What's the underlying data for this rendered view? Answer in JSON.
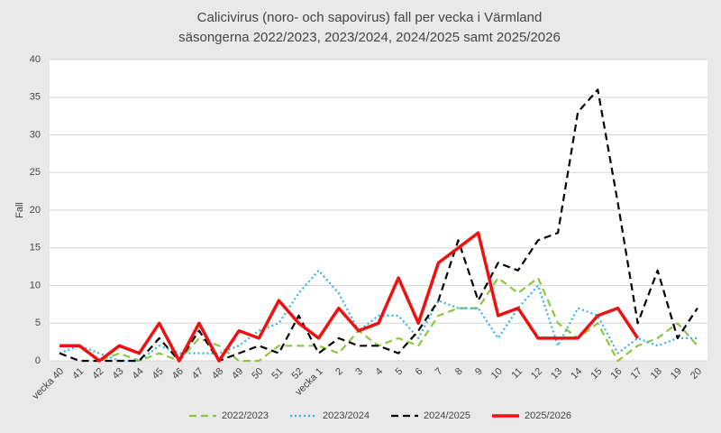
{
  "chart_data": {
    "type": "line",
    "title": "Calicivirus (noro- och sapovirus) fall per vecka i Värmland",
    "subtitle": "säsongerna 2022/2023, 2023/2024, 2024/2025 samt 2025/2026",
    "y_label": "Fall",
    "categories": [
      "vecka 40",
      "41",
      "42",
      "43",
      "44",
      "45",
      "46",
      "47",
      "48",
      "49",
      "50",
      "51",
      "52",
      "vecka 1",
      "2",
      "3",
      "4",
      "5",
      "6",
      "7",
      "8",
      "9",
      "10",
      "11",
      "12",
      "13",
      "14",
      "15",
      "16",
      "17",
      "18",
      "19",
      "20"
    ],
    "series": [
      {
        "name": "2022/2023",
        "color": "#8dc63f",
        "dash": "dashed",
        "values": [
          2,
          2,
          0,
          1,
          0,
          1,
          0,
          3,
          2,
          0,
          0,
          2,
          2,
          2,
          1,
          4,
          2,
          3,
          2,
          6,
          7,
          7,
          11,
          9,
          11,
          5,
          3,
          5,
          0,
          2,
          3,
          5,
          2
        ]
      },
      {
        "name": "2023/2024",
        "color": "#33b5e5",
        "dash": "dotted",
        "values": [
          1,
          2,
          1,
          0,
          0,
          2,
          1,
          1,
          1,
          2,
          4,
          5,
          9,
          12,
          9,
          4,
          6,
          6,
          3,
          8,
          7,
          7,
          3,
          7,
          10,
          2,
          7,
          6,
          1,
          3,
          2,
          3,
          3
        ]
      },
      {
        "name": "2024/2025",
        "color": "#000000",
        "dash": "dashed",
        "values": [
          1,
          0,
          0,
          0,
          0,
          3,
          0,
          4,
          0,
          1,
          2,
          1,
          6,
          1,
          3,
          2,
          2,
          1,
          4,
          8,
          16,
          8,
          13,
          12,
          16,
          17,
          33,
          36,
          21,
          5,
          12,
          3,
          7
        ]
      },
      {
        "name": "2025/2026",
        "color": "#ee1111",
        "dash": "solid",
        "values": [
          2,
          2,
          0,
          2,
          1,
          5,
          0,
          5,
          0,
          4,
          3,
          8,
          5,
          3,
          7,
          4,
          5,
          11,
          5,
          13,
          15,
          17,
          6,
          7,
          3,
          3,
          3,
          6,
          7,
          3,
          null,
          null,
          null
        ]
      }
    ],
    "ylim": [
      0,
      40
    ],
    "yticks": [
      0,
      5,
      10,
      15,
      20,
      25,
      30,
      35,
      40
    ],
    "grid": true,
    "legend": "bottom"
  }
}
